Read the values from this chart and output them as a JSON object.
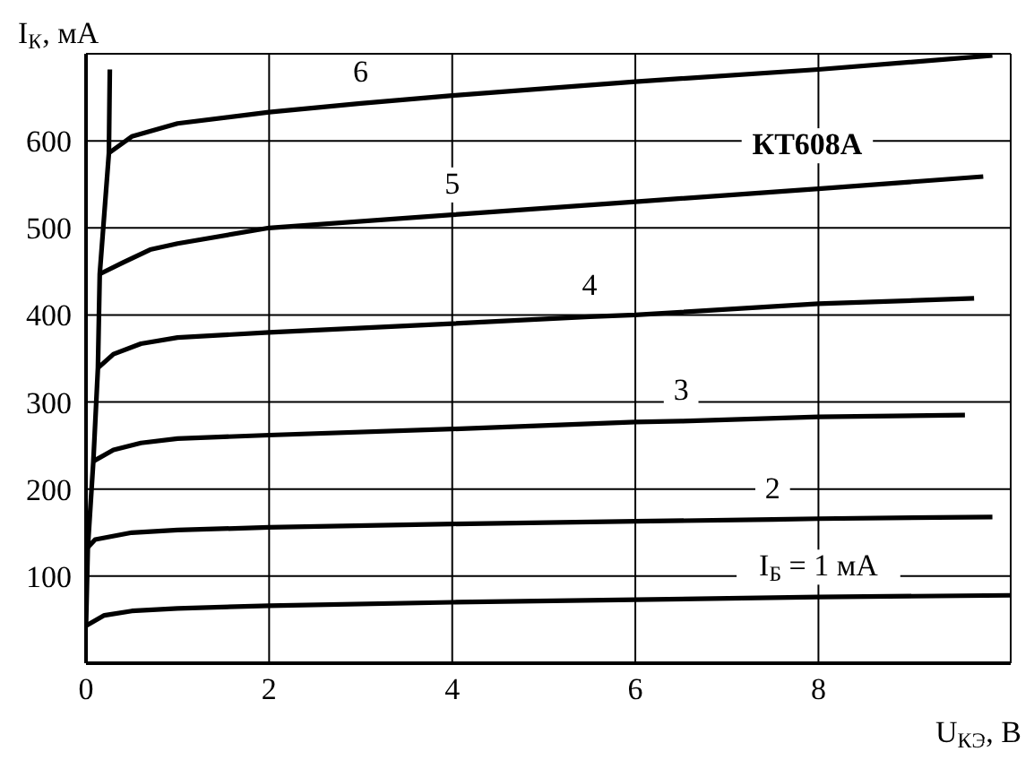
{
  "chart_data": {
    "type": "line",
    "xlabel": "U$_{КЭ}$, В",
    "ylabel": "I$_{К}$, мА",
    "annotations": [
      "КТ608А"
    ],
    "xlim": [
      0,
      10.1
    ],
    "ylim": [
      0,
      700
    ],
    "xticks": [
      0,
      2,
      4,
      6,
      8
    ],
    "yticks": [
      100,
      200,
      300,
      400,
      500,
      600
    ],
    "grid": true,
    "legend": false,
    "marker": "none",
    "line_style": "solid",
    "series": [
      {
        "name": "I$_{Б}$ = 1 мА",
        "color": "#000000",
        "x": [
          0,
          0.2,
          0.5,
          1,
          2,
          4,
          6,
          8,
          10.1
        ],
        "values": [
          43,
          55,
          60,
          63,
          66,
          70,
          73,
          76,
          78
        ]
      },
      {
        "name": "2",
        "color": "#000000",
        "x": [
          0.02,
          0.1,
          0.5,
          1,
          2,
          4,
          6,
          7.5,
          8,
          9.9
        ],
        "values": [
          133,
          142,
          150,
          153,
          156,
          160,
          163,
          165,
          166,
          168
        ]
      },
      {
        "name": "3",
        "color": "#000000",
        "x": [
          0.08,
          0.3,
          0.6,
          1,
          2,
          4,
          6,
          6.5,
          8,
          9.6
        ],
        "values": [
          232,
          245,
          253,
          258,
          262,
          269,
          277,
          278,
          283,
          285
        ]
      },
      {
        "name": "4",
        "color": "#000000",
        "x": [
          0.13,
          0.3,
          0.6,
          1,
          2,
          4,
          5.5,
          6,
          8,
          9.7
        ],
        "values": [
          339,
          355,
          367,
          374,
          380,
          390,
          398,
          400,
          413,
          419
        ]
      },
      {
        "name": "5",
        "color": "#000000",
        "x": [
          0.15,
          0.4,
          0.7,
          1,
          2,
          4,
          6,
          8,
          9.8
        ],
        "values": [
          447,
          460,
          475,
          482,
          500,
          515,
          530,
          545,
          559
        ]
      },
      {
        "name": "6",
        "color": "#000000",
        "x": [
          0.25,
          0.5,
          1,
          2,
          3,
          4,
          6,
          8,
          9.9
        ],
        "values": [
          586,
          605,
          620,
          633,
          643,
          652,
          668,
          682,
          698
        ]
      },
      {
        "color": "#000000",
        "x": [
          0,
          0.02,
          0.08,
          0.13,
          0.15,
          0.25,
          0.26
        ],
        "values": [
          43,
          133,
          232,
          339,
          447,
          586,
          682
        ]
      }
    ]
  }
}
